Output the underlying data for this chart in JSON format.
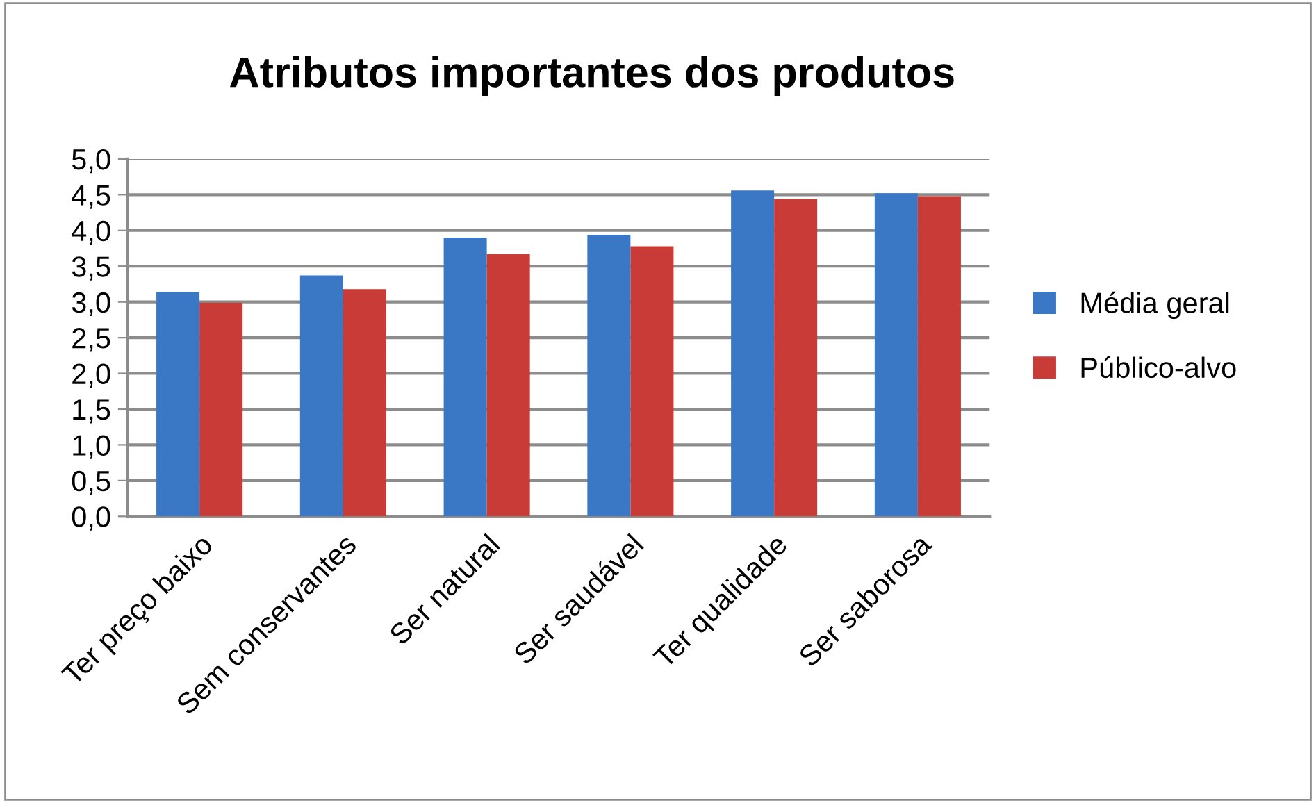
{
  "chart_data": {
    "type": "bar",
    "title": "Atributos importantes dos produtos",
    "categories": [
      "Ter preço baixo",
      "Sem conservantes",
      "Ser natural",
      "Ser saudável",
      "Ter qualidade",
      "Ser saborosa"
    ],
    "series": [
      {
        "name": "Média geral",
        "color": "#3a78c6",
        "values": [
          3.14,
          3.37,
          3.9,
          3.94,
          4.56,
          4.52
        ]
      },
      {
        "name": "Público-alvo",
        "color": "#c93b36",
        "values": [
          2.99,
          3.18,
          3.67,
          3.78,
          4.44,
          4.48
        ]
      }
    ],
    "ylim": [
      0,
      5
    ],
    "yticks": [
      {
        "value": 0,
        "label": "0,0"
      },
      {
        "value": 0.5,
        "label": "0,5"
      },
      {
        "value": 1,
        "label": "1,0"
      },
      {
        "value": 1.5,
        "label": "1,5"
      },
      {
        "value": 2,
        "label": "2,0"
      },
      {
        "value": 2.5,
        "label": "2,5"
      },
      {
        "value": 3,
        "label": "3,0"
      },
      {
        "value": 3.5,
        "label": "3,5"
      },
      {
        "value": 4,
        "label": "4,0"
      },
      {
        "value": 4.5,
        "label": "4,5"
      },
      {
        "value": 5,
        "label": "5,0"
      }
    ],
    "grid": "y",
    "legend": "right"
  }
}
